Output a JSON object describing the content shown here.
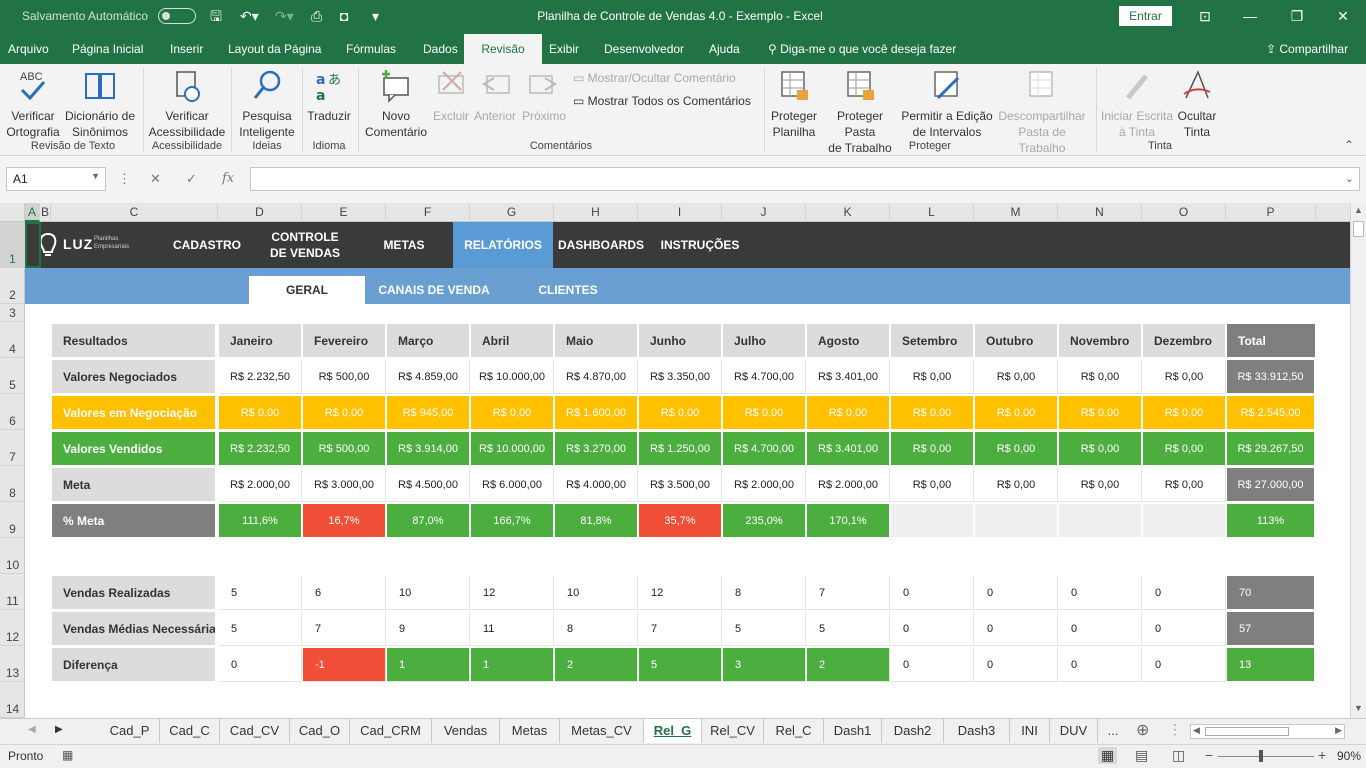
{
  "title_bar": {
    "autosave": "Salvamento Automático",
    "window_title": "Planilha de Controle de Vendas 4.0 - Exemplo  -  Excel",
    "signin": "Entrar"
  },
  "ribbon_tabs": [
    "Arquivo",
    "Página Inicial",
    "Inserir",
    "Layout da Página",
    "Fórmulas",
    "Dados",
    "Revisão",
    "Exibir",
    "Desenvolvedor",
    "Ajuda"
  ],
  "active_ribbon_tab": "Revisão",
  "tell_me": "Diga-me o que você deseja fazer",
  "share": "Compartilhar",
  "ribbon": {
    "verificar_ortografia": "Verificar\nOrtografia",
    "dicionario": "Dicionário de\nSinônimos",
    "revisao_texto": "Revisão de Texto",
    "verificar_acess": "Verificar\nAcessibilidade",
    "acessibilidade": "Acessibilidade",
    "pesquisa": "Pesquisa\nInteligente",
    "ideias": "Ideias",
    "traduzir": "Traduzir",
    "idioma": "Idioma",
    "novo_comentario": "Novo\nComentário",
    "excluir": "Excluir",
    "anterior": "Anterior",
    "proximo": "Próximo",
    "mostrar_ocultar": "Mostrar/Ocultar Comentário",
    "mostrar_todos": "Mostrar Todos os Comentários",
    "comentarios": "Comentários",
    "proteger_planilha": "Proteger\nPlanilha",
    "proteger_pasta": "Proteger Pasta\nde Trabalho",
    "permitir_edicao": "Permitir a Edição\nde Intervalos",
    "descompartilhar": "Descompartilhar\nPasta de Trabalho",
    "proteger": "Proteger",
    "iniciar_escrita": "Iniciar Escrita\nà Tinta",
    "ocultar_tinta": "Ocultar\nTinta",
    "tinta": "Tinta"
  },
  "formula_bar": {
    "name_box": "A1",
    "fx": "fx",
    "formula": ""
  },
  "columns": [
    "A",
    "B",
    "C",
    "D",
    "E",
    "F",
    "G",
    "H",
    "I",
    "J",
    "K",
    "L",
    "M",
    "N",
    "O",
    "P"
  ],
  "rows": [
    "1",
    "2",
    "3",
    "4",
    "5",
    "6",
    "7",
    "8",
    "9",
    "10",
    "11",
    "12",
    "13",
    "14"
  ],
  "logo": {
    "name": "LUZ",
    "tag1": "Planilhas",
    "tag2": "Empresariais"
  },
  "nav": [
    "CADASTRO",
    "CONTROLE\nDE VENDAS",
    "METAS",
    "RELATÓRIOS",
    "DASHBOARDS",
    "INSTRUÇÕES"
  ],
  "subnav": [
    "GERAL",
    "CANAIS DE VENDA",
    "CLIENTES"
  ],
  "table1": {
    "header": [
      "Resultados",
      "Janeiro",
      "Fevereiro",
      "Março",
      "Abril",
      "Maio",
      "Junho",
      "Julho",
      "Agosto",
      "Setembro",
      "Outubro",
      "Novembro",
      "Dezembro",
      "Total"
    ],
    "rows": [
      {
        "label": "Valores Negociados",
        "values": [
          "R$ 2.232,50",
          "R$ 500,00",
          "R$ 4.859,00",
          "R$ 10.000,00",
          "R$ 4.870,00",
          "R$ 3.350,00",
          "R$ 4.700,00",
          "R$ 3.401,00",
          "R$ 0,00",
          "R$ 0,00",
          "R$ 0,00",
          "R$ 0,00"
        ],
        "total": "R$ 33.912,50"
      },
      {
        "label": "Valores em Negociação",
        "values": [
          "R$ 0,00",
          "R$ 0,00",
          "R$ 945,00",
          "R$ 0,00",
          "R$ 1.600,00",
          "R$ 0,00",
          "R$ 0,00",
          "R$ 0,00",
          "R$ 0,00",
          "R$ 0,00",
          "R$ 0,00",
          "R$ 0,00"
        ],
        "total": "R$ 2.545,00"
      },
      {
        "label": "Valores Vendidos",
        "values": [
          "R$ 2.232,50",
          "R$ 500,00",
          "R$ 3.914,00",
          "R$ 10.000,00",
          "R$ 3.270,00",
          "R$ 1.250,00",
          "R$ 4.700,00",
          "R$ 3.401,00",
          "R$ 0,00",
          "R$ 0,00",
          "R$ 0,00",
          "R$ 0,00"
        ],
        "total": "R$ 29.267,50"
      },
      {
        "label": "Meta",
        "values": [
          "R$ 2.000,00",
          "R$ 3.000,00",
          "R$ 4.500,00",
          "R$ 6.000,00",
          "R$ 4.000,00",
          "R$ 3.500,00",
          "R$ 2.000,00",
          "R$ 2.000,00",
          "R$ 0,00",
          "R$ 0,00",
          "R$ 0,00",
          "R$ 0,00"
        ],
        "total": "R$ 27.000,00"
      },
      {
        "label": "% Meta",
        "values": [
          "111,6%",
          "16,7%",
          "87,0%",
          "166,7%",
          "81,8%",
          "35,7%",
          "235,0%",
          "170,1%",
          "",
          "",
          "",
          ""
        ],
        "total": "113%"
      }
    ]
  },
  "table2": {
    "rows": [
      {
        "label": "Vendas Realizadas",
        "values": [
          "5",
          "6",
          "10",
          "12",
          "10",
          "12",
          "8",
          "7",
          "0",
          "0",
          "0",
          "0"
        ],
        "total": "70"
      },
      {
        "label": "Vendas Médias Necessárias",
        "values": [
          "5",
          "7",
          "9",
          "11",
          "8",
          "7",
          "5",
          "5",
          "0",
          "0",
          "0",
          "0"
        ],
        "total": "57"
      },
      {
        "label": "Diferença",
        "values": [
          "0",
          "-1",
          "1",
          "1",
          "2",
          "5",
          "3",
          "2",
          "0",
          "0",
          "0",
          "0"
        ],
        "total": "13"
      }
    ]
  },
  "sheet_tabs": [
    "Cad_P",
    "Cad_C",
    "Cad_CV",
    "Cad_O",
    "Cad_CRM",
    "Vendas",
    "Metas",
    "Metas_CV",
    "Rel_G",
    "Rel_CV",
    "Rel_C",
    "Dash1",
    "Dash2",
    "Dash3",
    "INI",
    "DUV",
    "..."
  ],
  "active_sheet": "Rel_G",
  "status": {
    "ready": "Pronto",
    "zoom": "90%"
  },
  "colors": {
    "excel_green": "#217346",
    "nav_dark": "#3a3a3a",
    "nav_blue": "#5b9bd5",
    "sub_blue": "#6a9fd1",
    "yellow": "#ffc000",
    "green": "#4cae3f",
    "red": "#f04e37",
    "gray_dark": "#7f7f7f",
    "gray_light": "#dcdcdc"
  }
}
